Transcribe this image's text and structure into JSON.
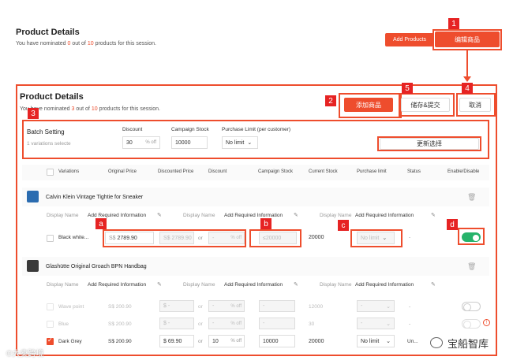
{
  "top": {
    "title": "Product Details",
    "sub_pre": "You have nominated ",
    "sub_count": "0",
    "sub_mid": " out of ",
    "sub_max": "10",
    "sub_post": " products for this session.",
    "add_products": "Add Products",
    "edit_products": "编辑商品"
  },
  "panel": {
    "title": "Product Details",
    "sub_pre": "You have nominated ",
    "sub_count": "3",
    "sub_mid": " out of ",
    "sub_max": "10",
    "sub_post": " products for this session.",
    "add_product": "添加商品",
    "save_submit": "储存&提交",
    "cancel": "取消"
  },
  "tags": {
    "t1": "1",
    "t2": "2",
    "t3": "3",
    "t4": "4",
    "t5": "5",
    "a": "a",
    "b": "b",
    "c": "c",
    "d": "d"
  },
  "batch": {
    "title": "Batch Setting",
    "variations": "1 variations selecte",
    "discount_label": "Discount",
    "discount_value": "30",
    "discount_unit": "% off",
    "stock_label": "Campaign Stock",
    "stock_value": "10000",
    "limit_label": "Purchase Limit (per customer)",
    "limit_value": "No limit",
    "update_btn": "更新选择"
  },
  "columns": [
    "Variations",
    "Original Price",
    "Discounted Price",
    "Discount",
    "Campaign Stock",
    "Current Stock",
    "Purchase limit",
    "Status",
    "Enable/Disable"
  ],
  "product1": {
    "name": "Calvin Klein Vintage Tightie for Sneaker",
    "dn1_label": "Display Name",
    "dn1_value": "Add Required Information",
    "dn2_label": "Display Name",
    "dn2_value": "Add Required Information",
    "dn3_label": "Display Name",
    "dn3_value": "Add Required Information",
    "row": {
      "variation": "Black white...",
      "currency": "S$",
      "price": "2789.90",
      "disc_price": "S$ 2789.90",
      "or": "or",
      "disc_pct": "-",
      "pct_unit": "% off",
      "campaign_stock": "≤20000",
      "current_stock": "20000",
      "limit": "No limit",
      "status": "-"
    }
  },
  "product2": {
    "name": "Glashütte Original Groach BPN Handbag",
    "dn1_label": "Display Name",
    "dn1_value": "Add Required Information",
    "dn2_label": "Display Name",
    "dn2_value": "Add Required Information",
    "dn3_label": "Display Name",
    "dn3_value": "Add Required Information",
    "rows": [
      {
        "variation": "Wave point",
        "price": "S$ 200.90",
        "disc": "$ -",
        "or": "or",
        "pct": "-",
        "unit": "% off",
        "cstock": "-",
        "stock": "12000",
        "limit": "-",
        "status": "-"
      },
      {
        "variation": "Blue",
        "price": "S$ 200.90",
        "disc": "$ -",
        "or": "or",
        "pct": "-",
        "unit": "% off",
        "cstock": "-",
        "stock": "30",
        "limit": "-",
        "status": "-"
      },
      {
        "variation": "Dark Grey",
        "price": "S$ 200.90",
        "disc": "$ 69.90",
        "or": "or",
        "pct": "10",
        "unit": "% off",
        "cstock": "10000",
        "stock": "20000",
        "limit": "No limit",
        "status": "Un..."
      }
    ]
  },
  "watermark_left": "©大卖跨境",
  "watermark_right": "宝船智库"
}
